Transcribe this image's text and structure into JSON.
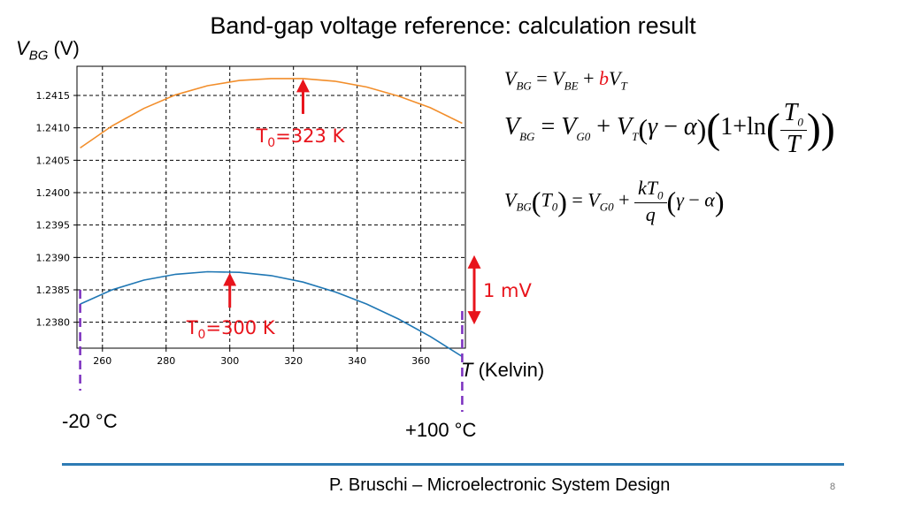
{
  "slide": {
    "title": "Band-gap voltage reference: calculation result",
    "footer": "P. Bruschi – Microelectronic System Design",
    "page_number": "8"
  },
  "labels": {
    "ylabel_symbol": "V",
    "ylabel_sub": "BG",
    "ylabel_unit": "(V)",
    "xlabel_symbol": "T",
    "xlabel_unit": "(Kelvin)",
    "celsius_low": "-20 °C",
    "celsius_high": "+100 °C",
    "range_label": "1 mV",
    "t0_high_prefix": "T",
    "t0_high_sub": "0",
    "t0_high_value": "=323 K",
    "t0_low_prefix": "T",
    "t0_low_sub": "0",
    "t0_low_value": "=300 K"
  },
  "colors": {
    "orange": "#f28e2b",
    "blue": "#1f77b4",
    "annotation_red": "#e8141c",
    "marker_purple": "#7b2fbf",
    "footer_line": "#2e7bb4"
  },
  "chart_data": {
    "type": "line",
    "xlim": [
      252,
      374
    ],
    "ylim": [
      1.2376,
      1.24195
    ],
    "xticks": [
      260,
      280,
      300,
      320,
      340,
      360
    ],
    "yticks": [
      1.238,
      1.2385,
      1.239,
      1.2395,
      1.24,
      1.2405,
      1.241,
      1.2415
    ],
    "ytick_labels": [
      "1.2380",
      "1.2385",
      "1.2390",
      "1.2395",
      "1.2400",
      "1.2405",
      "1.2410",
      "1.2415"
    ],
    "grid": "dashed",
    "series": [
      {
        "color": "#f28e2b",
        "x": [
          253,
          263,
          273,
          283,
          293,
          303,
          313,
          323,
          333,
          343,
          353,
          363,
          373
        ],
        "y": [
          1.24069,
          1.24103,
          1.2413,
          1.24151,
          1.24165,
          1.24173,
          1.24176,
          1.24176,
          1.24172,
          1.24163,
          1.24149,
          1.24131,
          1.24107
        ]
      },
      {
        "color": "#1f77b4",
        "x": [
          253,
          263,
          273,
          283,
          293,
          303,
          313,
          323,
          333,
          343,
          353,
          363,
          373
        ],
        "y": [
          1.23828,
          1.2385,
          1.23865,
          1.23874,
          1.23878,
          1.23877,
          1.23872,
          1.23862,
          1.23847,
          1.23828,
          1.23805,
          1.23778,
          1.23747
        ]
      }
    ],
    "markers": {
      "t0_high": {
        "x": 323,
        "y": 1.24176
      },
      "t0_low": {
        "x": 300,
        "y": 1.23877
      },
      "range_top_y": 1.239,
      "range_bottom_y": 1.238,
      "celsius_low_x": 253,
      "celsius_high_x": 373
    }
  },
  "equations": {
    "eq1": {
      "lhs": "V",
      "lhs_sub": "BG",
      "eq": "=",
      "t1": "V",
      "t1_sub": "BE",
      "plus": "+",
      "coef": "b",
      "t2": "V",
      "t2_sub": "T"
    },
    "eq2": {
      "lhs": "V",
      "lhs_sub": "BG",
      "eq": "=",
      "t1": "V",
      "t1_sub": "G0",
      "plus": "+",
      "t2": "V",
      "t2_sub": "T",
      "gamma": "γ",
      "minus": "−",
      "alpha": "α",
      "one": "1",
      "plus2": "+",
      "ln": "ln",
      "num": "T",
      "num_sub": "0",
      "den": "T"
    },
    "eq3": {
      "lhs": "V",
      "lhs_sub": "BG",
      "arg": "T",
      "arg_sub": "0",
      "eq": "=",
      "t1": "V",
      "t1_sub": "G0",
      "plus": "+",
      "num": "kT",
      "num_sub": "0",
      "den": "q",
      "gamma": "γ",
      "minus": "−",
      "alpha": "α"
    }
  }
}
